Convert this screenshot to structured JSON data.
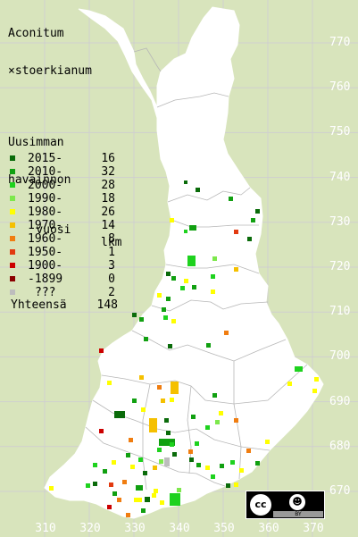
{
  "title": {
    "line1": "Aconitum",
    "line2": "×stoerkianum"
  },
  "legend": {
    "head1": "Uusimman",
    "head2": "havainnon",
    "head3": "vuosi",
    "head3_right": "lkm",
    "items": [
      {
        "label": "2015-",
        "count": "16",
        "color": "#0a6b0a"
      },
      {
        "label": "2010-",
        "count": "32",
        "color": "#11a011"
      },
      {
        "label": "2000-",
        "count": "28",
        "color": "#1ed21e"
      },
      {
        "label": "1990-",
        "count": "18",
        "color": "#7de84c"
      },
      {
        "label": "1980-",
        "count": "26",
        "color": "#ffff00"
      },
      {
        "label": "1970-",
        "count": "14",
        "color": "#f5c000"
      },
      {
        "label": "1960-",
        "count": "8",
        "color": "#f07d10"
      },
      {
        "label": "1950-",
        "count": "1",
        "color": "#e23a10"
      },
      {
        "label": "1900-",
        "count": "3",
        "color": "#cc0000"
      },
      {
        "label": "-1899",
        "count": "0",
        "color": "#8a0000"
      },
      {
        "label": "???",
        "count": "2",
        "color": "#bdbdbd"
      }
    ],
    "total_label": "Yhteensä",
    "total_count": "148"
  },
  "axes": {
    "y_ticks": [
      "770",
      "760",
      "750",
      "740",
      "730",
      "720",
      "710",
      "700",
      "690",
      "680",
      "670"
    ],
    "x_ticks": [
      "310",
      "320",
      "330",
      "340",
      "350",
      "360",
      "370"
    ]
  },
  "license": {
    "cc": "cc",
    "by": "BY",
    "attr_icon": "person-icon"
  },
  "colors": {
    "background": "#d8e4bc",
    "land": "#ffffff",
    "grid": "#c8c8c8",
    "border": "#b4b4b4"
  }
}
